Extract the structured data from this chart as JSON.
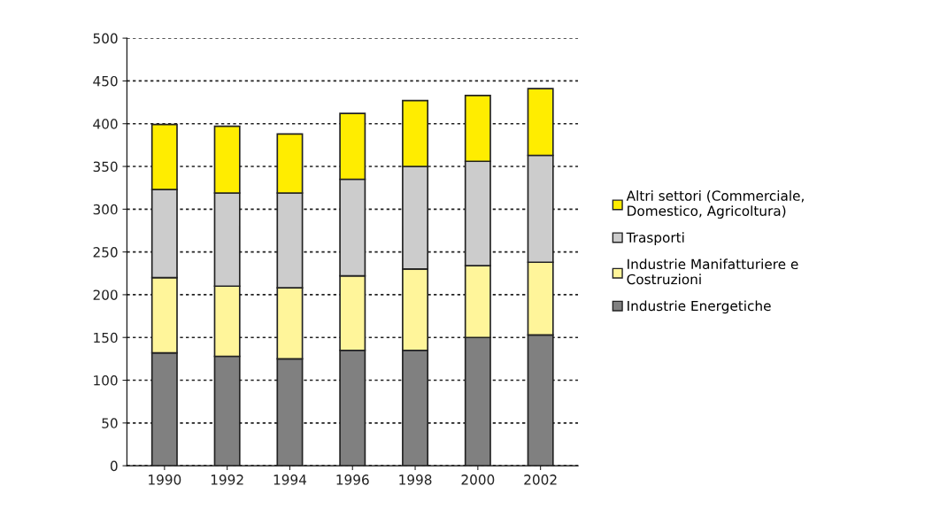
{
  "chart_data": {
    "type": "bar",
    "stacked": true,
    "categories": [
      "1990",
      "1992",
      "1994",
      "1996",
      "1998",
      "2000",
      "2002"
    ],
    "series": [
      {
        "name": "Industrie Energetiche",
        "color": "#808080",
        "values": [
          132,
          128,
          125,
          135,
          135,
          150,
          153
        ]
      },
      {
        "name": "Industrie Manifatturiere e Costruzioni",
        "color": "#fff59a",
        "values": [
          88,
          82,
          83,
          87,
          95,
          84,
          85
        ]
      },
      {
        "name": "Trasporti",
        "color": "#cccccc",
        "values": [
          103,
          109,
          111,
          113,
          120,
          122,
          125
        ]
      },
      {
        "name": "Altri settori (Commerciale, Domestico, Agricoltura)",
        "color": "#ffed00",
        "values": [
          76,
          78,
          69,
          77,
          77,
          77,
          78
        ]
      }
    ],
    "ylim": [
      0,
      500
    ],
    "yticks": [
      0,
      50,
      100,
      150,
      200,
      250,
      300,
      350,
      400,
      450,
      500
    ],
    "grid": "y",
    "legend": "right"
  }
}
